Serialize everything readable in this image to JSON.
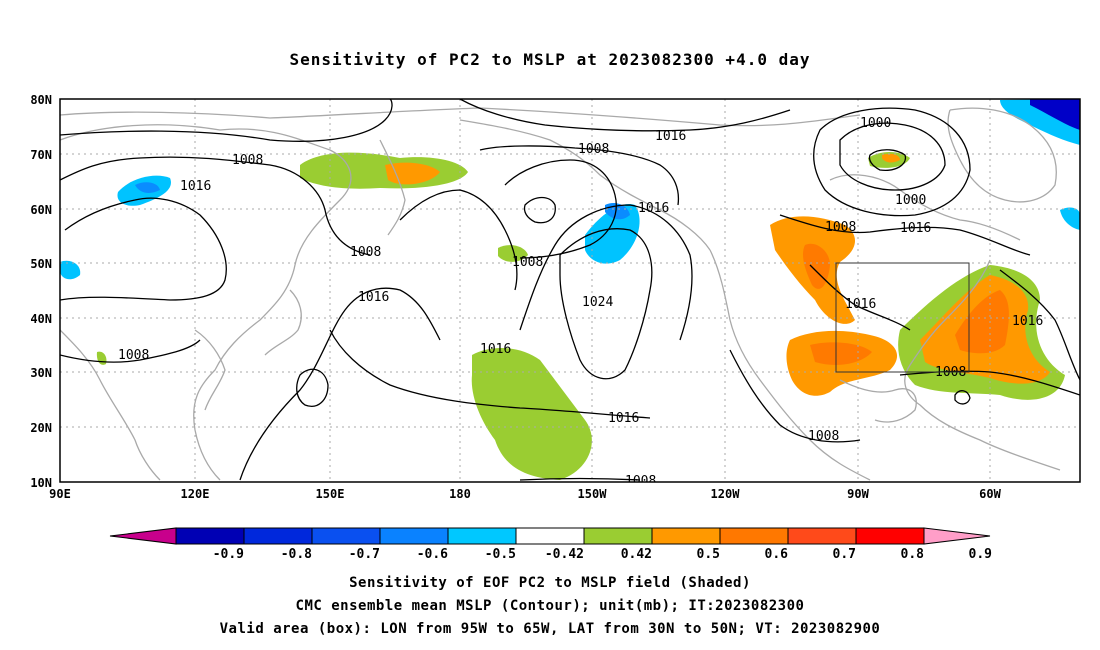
{
  "title": "Sensitivity of PC2 to MSLP at 2023082300 +4.0 day",
  "map": {
    "lat_labels": [
      "80N",
      "70N",
      "60N",
      "50N",
      "40N",
      "30N",
      "20N",
      "10N"
    ],
    "lon_labels": [
      "90E",
      "120E",
      "150E",
      "180",
      "150W",
      "120W",
      "90W",
      "60W"
    ],
    "contour_labels": [
      "1016",
      "1008",
      "1000",
      "1008",
      "1016",
      "1000",
      "1016",
      "1008",
      "1008",
      "1008",
      "1016",
      "1024",
      "1016",
      "1016",
      "1008",
      "1016",
      "1008",
      "1016",
      "1008",
      "1016",
      "1008"
    ],
    "colors": {
      "land_outline": "#a9a9a9",
      "contour": "#000000",
      "pos_042_05": "#9acd32",
      "pos_05_06": "#ff9900",
      "pos_06_07": "#ff7a00",
      "pos_07_08": "#ff4a1a",
      "neg_05_042": "#00c3ff",
      "neg_06_05": "#0a8cff",
      "neg_09_08": "#0000c8"
    }
  },
  "colorbar": {
    "labels": [
      "-0.9",
      "-0.8",
      "-0.7",
      "-0.6",
      "-0.5",
      "-0.42",
      "0.42",
      "0.5",
      "0.6",
      "0.7",
      "0.8",
      "0.9"
    ],
    "colors": [
      "#c8008c",
      "#0000b4",
      "#0028dc",
      "#0a50f0",
      "#0a82ff",
      "#00c8ff",
      "#ffffff",
      "#9acd32",
      "#ff9900",
      "#ff7800",
      "#ff4a1a",
      "#ff0000",
      "#ff9ec8"
    ]
  },
  "captions": {
    "line1": "Sensitivity of EOF PC2 to MSLP field (Shaded)",
    "line2": "CMC ensemble mean MSLP (Contour); unit(mb); IT:2023082300",
    "line3": "Valid area (box): LON from 95W to 65W, LAT from 30N to 50N; VT: 2023082900"
  }
}
